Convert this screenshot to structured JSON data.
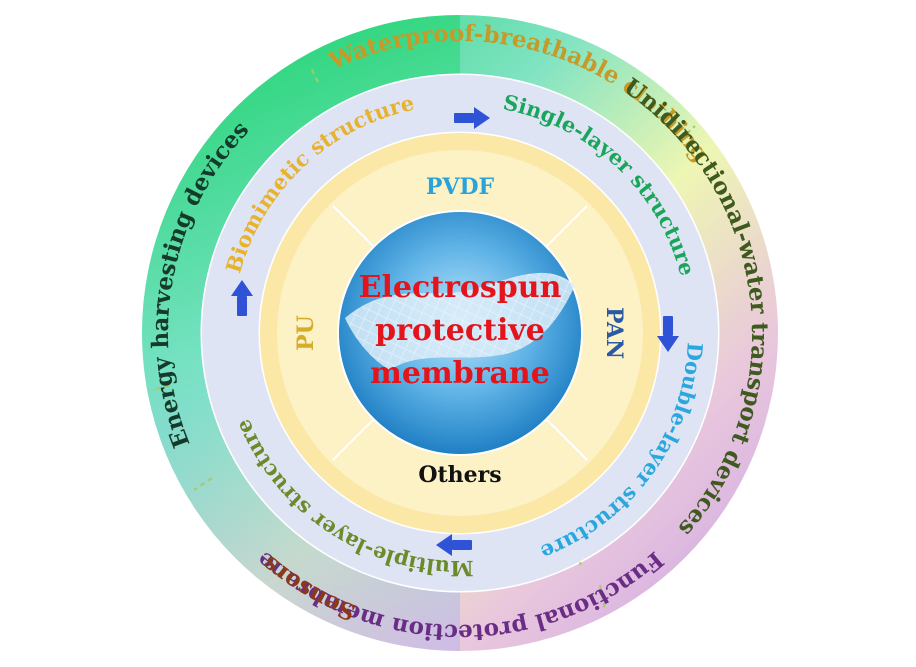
{
  "center": {
    "lines": [
      "Electrospun",
      "protective",
      "membrane"
    ],
    "color": "#e3141b"
  },
  "materials": [
    {
      "label": "PVDF",
      "color": "#2aa3dc"
    },
    {
      "label": "PAN",
      "color": "#2c59a6"
    },
    {
      "label": "Others",
      "color": "#111111"
    },
    {
      "label": "PU",
      "color": "#d6ad2a"
    }
  ],
  "structures": [
    {
      "label": "Biomimetic structure",
      "color": "#e7b22e"
    },
    {
      "label": "Single-layer structure",
      "color": "#1aa65a"
    },
    {
      "label": "Double-layer structure",
      "color": "#2aa8de"
    },
    {
      "label": "Multiple-layer structure",
      "color": "#6b8a2a"
    }
  ],
  "applications": [
    {
      "label": "Waterproof-breathable clothing",
      "color": "#c69a29"
    },
    {
      "label": "Unidirectional-water transport devices",
      "color": "#3e5a1f"
    },
    {
      "label": "Functional protection membrane",
      "color": "#6a2d86"
    },
    {
      "label": "Sensors",
      "color": "#8a3a1a"
    },
    {
      "label": "Energy harvesting devices",
      "color": "#153a2a"
    }
  ],
  "arrow_color": "#2f53d6"
}
